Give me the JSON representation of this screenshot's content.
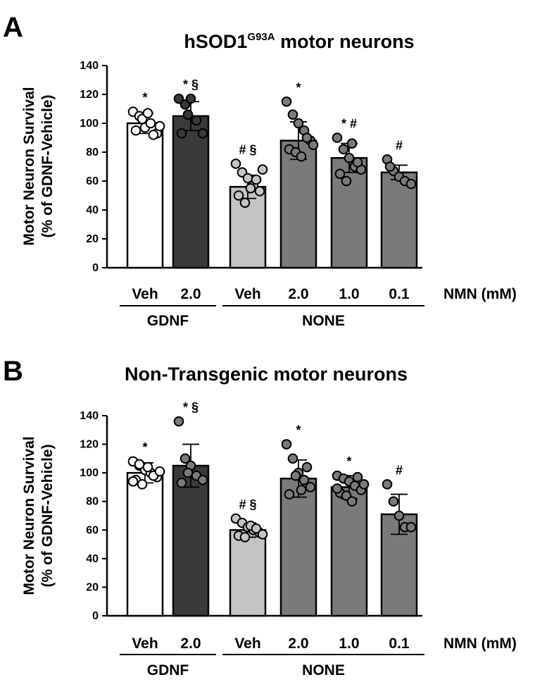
{
  "chart_data": [
    {
      "type": "bar",
      "panel_letter": "A",
      "title": "hSOD1",
      "title_superscript": "G93A",
      "title_suffix": " motor neurons",
      "ylabel": [
        "Motor Neuron Survival",
        "(% of GDNF-Vehicle)"
      ],
      "ylim": [
        0,
        140
      ],
      "yticks": [
        "0",
        "20",
        "40",
        "60",
        "80",
        "100",
        "120",
        "140"
      ],
      "categories": [
        "Veh",
        "2.0",
        "Veh",
        "2.0",
        "1.0",
        "0.1"
      ],
      "x_suffix_label": "NMN (mM)",
      "groups": [
        {
          "label": "GDNF",
          "from": 0,
          "to": 1
        },
        {
          "label": "NONE",
          "from": 2,
          "to": 5
        }
      ],
      "values": [
        100,
        105,
        56,
        88,
        76,
        66
      ],
      "sd": [
        7,
        10,
        8,
        13,
        10,
        5
      ],
      "bar_colors": [
        "#ffffff",
        "#3a3a3a",
        "#c4c4c4",
        "#7a7a7a",
        "#7a7a7a",
        "#7a7a7a"
      ],
      "point_colors": [
        "#ffffff",
        "#3a3a3a",
        "#c4c4c4",
        "#7a7a7a",
        "#7a7a7a",
        "#7a7a7a"
      ],
      "annotations": [
        "*",
        "* §",
        "# §",
        "*",
        "* #",
        "#"
      ],
      "points": [
        [
          108,
          105,
          97,
          100,
          93,
          95,
          103,
          107,
          92,
          98
        ],
        [
          117,
          113,
          117,
          102,
          93,
          93,
          106
        ],
        [
          72,
          66,
          62,
          57,
          53,
          50,
          45,
          55,
          61,
          68
        ],
        [
          115,
          106,
          100,
          95,
          88,
          82,
          80,
          77,
          90,
          85
        ],
        [
          90,
          82,
          76,
          70,
          68,
          65,
          60,
          86,
          73
        ],
        [
          75,
          67,
          63,
          60,
          58,
          70
        ]
      ]
    },
    {
      "type": "bar",
      "panel_letter": "B",
      "title": "Non-Transgenic motor neurons",
      "ylabel": [
        "Motor Neuron Survival",
        "(% of GDNF-Vehicle)"
      ],
      "ylim": [
        0,
        140
      ],
      "yticks": [
        "0",
        "20",
        "40",
        "60",
        "80",
        "100",
        "120",
        "140"
      ],
      "categories": [
        "Veh",
        "2.0",
        "Veh",
        "2.0",
        "1.0",
        "0.1"
      ],
      "x_suffix_label": "NMN (mM)",
      "groups": [
        {
          "label": "GDNF",
          "from": 0,
          "to": 1
        },
        {
          "label": "NONE",
          "from": 2,
          "to": 5
        }
      ],
      "values": [
        100,
        105,
        60,
        96,
        90,
        71
      ],
      "sd": [
        7,
        15,
        5,
        13,
        8,
        14
      ],
      "bar_colors": [
        "#ffffff",
        "#3a3a3a",
        "#c4c4c4",
        "#7a7a7a",
        "#7a7a7a",
        "#7a7a7a"
      ],
      "point_colors": [
        "#ffffff",
        "#7a7a7a",
        "#c4c4c4",
        "#7a7a7a",
        "#7a7a7a",
        "#7a7a7a"
      ],
      "annotations": [
        "*",
        "* §",
        "# §",
        "*",
        "*",
        "#"
      ],
      "points": [
        [
          108,
          105,
          102,
          100,
          97,
          95,
          92,
          104,
          98,
          101,
          94,
          106
        ],
        [
          136,
          110,
          105,
          98,
          95,
          93,
          100
        ],
        [
          68,
          65,
          62,
          60,
          58,
          56,
          55,
          63,
          61,
          57
        ],
        [
          120,
          110,
          100,
          95,
          90,
          85,
          98,
          88,
          104
        ],
        [
          98,
          96,
          94,
          91,
          88,
          86,
          84,
          80,
          97,
          92,
          89
        ],
        [
          92,
          80,
          70,
          62,
          62
        ]
      ]
    }
  ]
}
